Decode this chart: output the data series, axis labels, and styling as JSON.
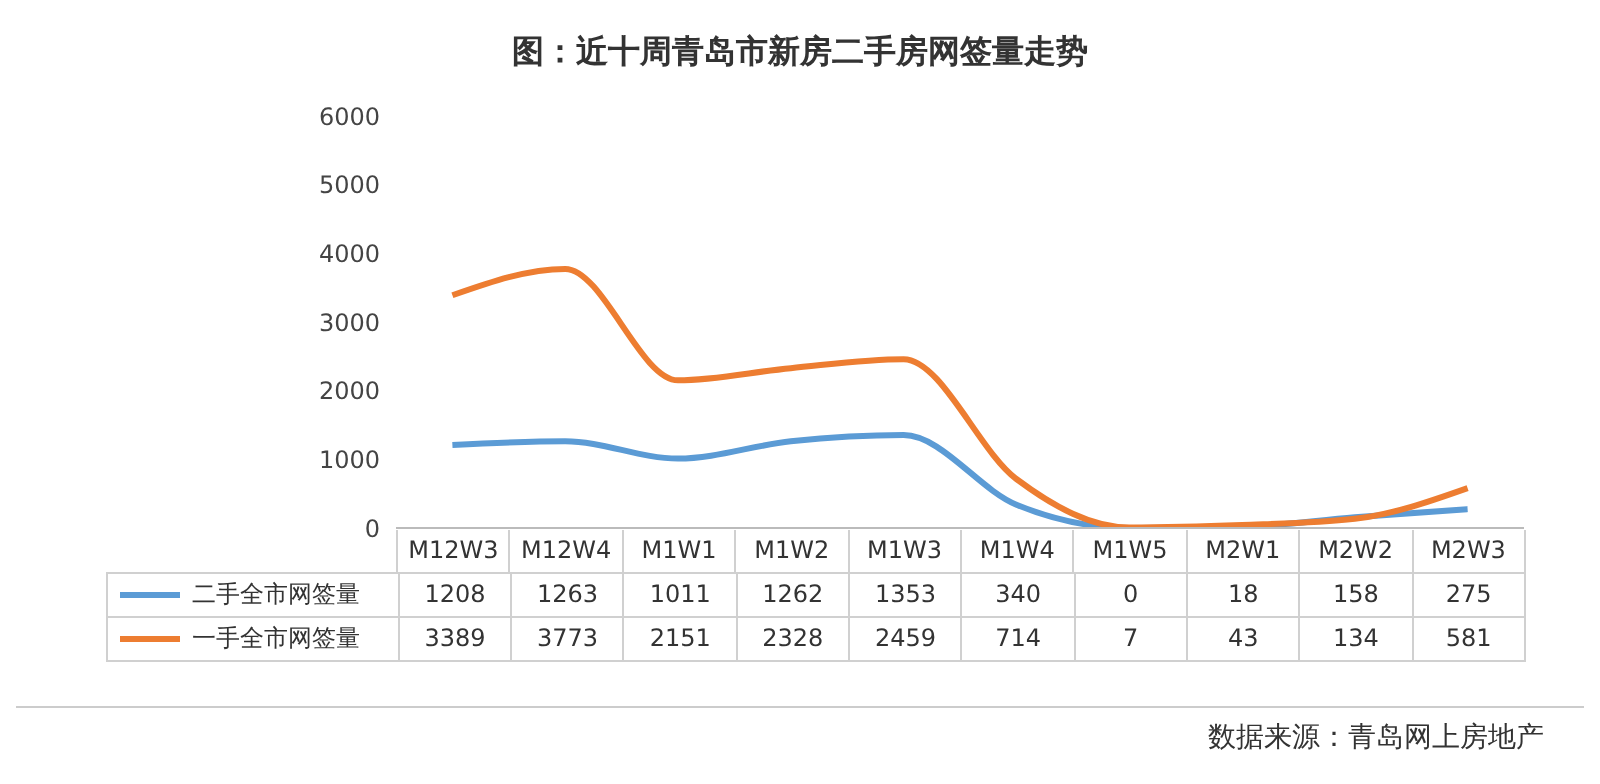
{
  "chart_data": {
    "type": "line",
    "title": "图：近十周青岛市新房二手房网签量走势",
    "categories": [
      "M12W3",
      "M12W4",
      "M1W1",
      "M1W2",
      "M1W3",
      "M1W4",
      "M1W5",
      "M2W1",
      "M2W2",
      "M2W3"
    ],
    "series": [
      {
        "name": "二手全市网签量",
        "color": "#5b9bd5",
        "values": [
          1208,
          1263,
          1011,
          1262,
          1353,
          340,
          0,
          18,
          158,
          275
        ]
      },
      {
        "name": "一手全市网签量",
        "color": "#ed7d31",
        "values": [
          3389,
          3773,
          2151,
          2328,
          2459,
          714,
          7,
          43,
          134,
          581
        ]
      }
    ],
    "ylim": [
      0,
      6000
    ],
    "yticks": [
      0,
      1000,
      2000,
      3000,
      4000,
      5000,
      6000
    ],
    "grid": false,
    "legend": "bottom left",
    "marker": "none",
    "line_style": "solid",
    "data_labels": true,
    "annotations": [
      "数据来源：青岛网上房地产"
    ]
  }
}
